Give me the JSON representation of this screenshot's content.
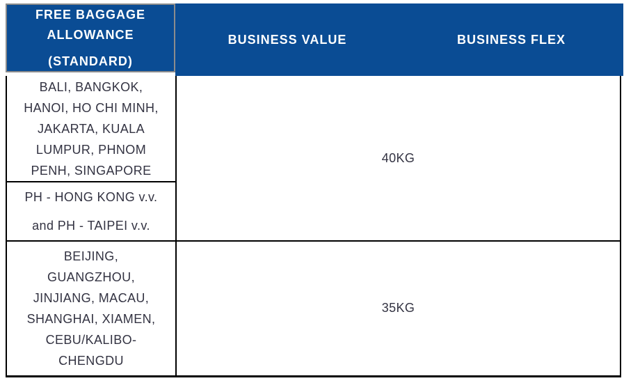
{
  "colors": {
    "header_bg": "#0a4c94",
    "header_text": "#ffffff",
    "body_text": "#333342",
    "grid_border": "#000000",
    "header_border": "#8c8c8c"
  },
  "header": {
    "title_lines": [
      "FREE BAGGAGE",
      "ALLOWANCE",
      "(STANDARD)"
    ],
    "columns": [
      {
        "label": "BUSINESS VALUE"
      },
      {
        "label": "BUSINESS FLEX"
      }
    ]
  },
  "body": {
    "groups": [
      {
        "allowance": "40KG",
        "destination_cells": [
          [
            "BALI, BANGKOK,",
            "HANOI, HO CHI MINH,",
            "JAKARTA, KUALA",
            "LUMPUR, PHNOM",
            "PENH, SINGAPORE"
          ],
          [
            "PH - HONG KONG v.v.",
            "and PH - TAIPEI v.v."
          ]
        ]
      },
      {
        "allowance": "35KG",
        "destination_cells": [
          [
            "BEIJING,",
            "GUANGZHOU,",
            "JINJIANG, MACAU,",
            "SHANGHAI, XIAMEN,",
            "CEBU/KALIBO-",
            "CHENGDU"
          ]
        ]
      }
    ]
  }
}
